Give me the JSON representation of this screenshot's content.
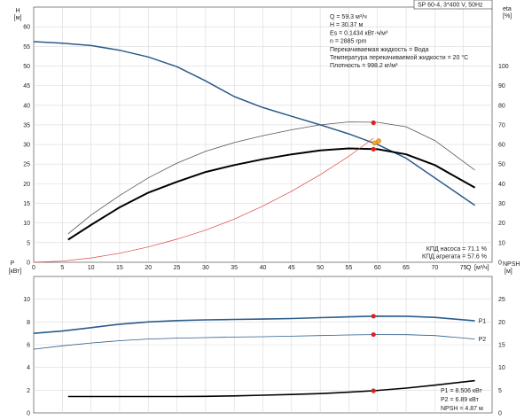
{
  "chart_data": [
    {
      "id": "top",
      "type": "line",
      "title": "SP 60-4, 3*400 V, 50Hz",
      "ylabel_left": "H",
      "ylabel_left_unit": "[м]",
      "ylabel_right": "eta",
      "ylabel_right_unit": "[%]",
      "xlabel": "Q",
      "xlabel_unit": "[м³/ч]",
      "xlim": [
        0,
        80
      ],
      "ylim_left": [
        0,
        65
      ],
      "ylim_right": [
        0,
        130
      ],
      "x_ticks": [
        "0",
        "5",
        "10",
        "15",
        "20",
        "25",
        "30",
        "35",
        "40",
        "45",
        "50",
        "55",
        "60",
        "65",
        "70",
        "75"
      ],
      "y_ticks_left": [
        "0",
        "5",
        "10",
        "15",
        "20",
        "25",
        "30",
        "35",
        "40",
        "45",
        "50",
        "55",
        "60"
      ],
      "y_ticks_right": [
        "0",
        "10",
        "20",
        "30",
        "40",
        "50",
        "60",
        "70",
        "80",
        "90",
        "100"
      ],
      "grid": true,
      "series": [
        {
          "color": "#2a5b8c",
          "axis": "left",
          "width": 1.5,
          "x": [
            0,
            5,
            10,
            15,
            20,
            25,
            30,
            35,
            40,
            45,
            50,
            55,
            60,
            65,
            70,
            77
          ],
          "y": [
            56.2,
            55.8,
            55.2,
            54.0,
            52.3,
            49.8,
            46.2,
            42.2,
            39.4,
            37.2,
            35.0,
            32.7,
            30.0,
            26.5,
            21.5,
            14.5
          ]
        },
        {
          "color": "#555555",
          "axis": "right",
          "width": 0.8,
          "x": [
            6,
            10,
            15,
            20,
            25,
            30,
            35,
            40,
            45,
            50,
            55,
            60,
            65,
            70,
            77
          ],
          "y": [
            14.5,
            24,
            34,
            43,
            50.5,
            56.5,
            61,
            64.5,
            67.5,
            70,
            71.5,
            71.3,
            69,
            62,
            47
          ]
        },
        {
          "color": "#000000",
          "axis": "right",
          "width": 2.0,
          "x": [
            6,
            10,
            15,
            20,
            25,
            30,
            35,
            40,
            45,
            50,
            55,
            60,
            65,
            70,
            77
          ],
          "y": [
            11.5,
            19,
            28,
            35.5,
            41,
            46,
            49.5,
            52.5,
            55,
            57,
            58,
            57.6,
            55,
            49.5,
            38
          ]
        },
        {
          "color": "#e04040",
          "axis": "left",
          "width": 0.7,
          "x": [
            0,
            5,
            10,
            15,
            20,
            25,
            30,
            35,
            40,
            45,
            50,
            55,
            59.3
          ],
          "y": [
            0,
            0.3,
            1.1,
            2.3,
            3.9,
            5.9,
            8.2,
            11,
            14.3,
            18.1,
            22.3,
            27,
            31.6
          ]
        }
      ],
      "points": [
        {
          "x": 59.3,
          "y": 71.1,
          "axis": "right",
          "color": "#e02020"
        },
        {
          "x": 59.3,
          "y": 57.6,
          "axis": "right",
          "color": "#e02020"
        },
        {
          "x": 59.5,
          "y": 30.37,
          "axis": "left",
          "color": "#f5a623"
        },
        {
          "x": 60.2,
          "y": 30.9,
          "axis": "left",
          "color": "#f5a623"
        }
      ],
      "info_lines": [
        "Q = 59.3 м³/ч",
        "H = 30.37 м",
        "Es = 0.1434 кВт·ч/м³",
        "n = 2885 rpm",
        "Перекачиваемая жидкость = Вода",
        "Температура перекачиваемой жидкости = 20 °C",
        "Плотность = 998.2 кг/м³"
      ],
      "efficiency_lines": [
        "КПД насоса = 71.1 %",
        "КПД агрегата = 57.6 %"
      ]
    },
    {
      "id": "bottom",
      "type": "line",
      "ylabel_left": "P",
      "ylabel_left_unit": "[кВт]",
      "ylabel_right": "NPSH",
      "ylabel_right_unit": "[м]",
      "xlim": [
        0,
        80
      ],
      "ylim_left": [
        0,
        12
      ],
      "ylim_right": [
        0,
        30
      ],
      "y_ticks_left": [
        "0",
        "2",
        "4",
        "6",
        "8",
        "10"
      ],
      "y_ticks_right": [
        "0",
        "5",
        "10",
        "15",
        "20",
        "25"
      ],
      "grid": true,
      "series": [
        {
          "name": "P1",
          "color": "#2a5b8c",
          "axis": "left",
          "width": 1.6,
          "x": [
            0,
            5,
            10,
            15,
            20,
            25,
            30,
            35,
            40,
            45,
            50,
            55,
            59.3,
            65,
            70,
            77
          ],
          "y": [
            7.0,
            7.2,
            7.5,
            7.8,
            8.0,
            8.12,
            8.18,
            8.22,
            8.25,
            8.3,
            8.38,
            8.45,
            8.506,
            8.5,
            8.4,
            8.1
          ]
        },
        {
          "name": "P2",
          "color": "#2a5b8c",
          "axis": "left",
          "width": 0.8,
          "x": [
            0,
            5,
            10,
            15,
            20,
            25,
            30,
            35,
            40,
            45,
            50,
            55,
            59.3,
            65,
            70,
            77
          ],
          "y": [
            5.6,
            5.9,
            6.15,
            6.35,
            6.5,
            6.58,
            6.62,
            6.67,
            6.7,
            6.75,
            6.8,
            6.86,
            6.89,
            6.88,
            6.8,
            6.5
          ]
        },
        {
          "color": "#000000",
          "axis": "right",
          "width": 1.6,
          "x": [
            6,
            10,
            15,
            20,
            25,
            30,
            35,
            40,
            45,
            50,
            55,
            59.3,
            65,
            70,
            77
          ],
          "y": [
            3.6,
            3.6,
            3.6,
            3.6,
            3.6,
            3.65,
            3.75,
            3.9,
            4.05,
            4.25,
            4.55,
            4.87,
            5.45,
            6.1,
            7.1
          ]
        }
      ],
      "points": [
        {
          "x": 59.3,
          "y": 8.506,
          "axis": "left",
          "color": "#e02020"
        },
        {
          "x": 59.3,
          "y": 6.89,
          "axis": "left",
          "color": "#e02020"
        },
        {
          "x": 59.3,
          "y": 4.87,
          "axis": "right",
          "color": "#e02020"
        }
      ],
      "result_lines": [
        "P1 = 8.506 кВт",
        "P2 = 6.89 кВт",
        "NPSH = 4.87 м"
      ]
    }
  ]
}
